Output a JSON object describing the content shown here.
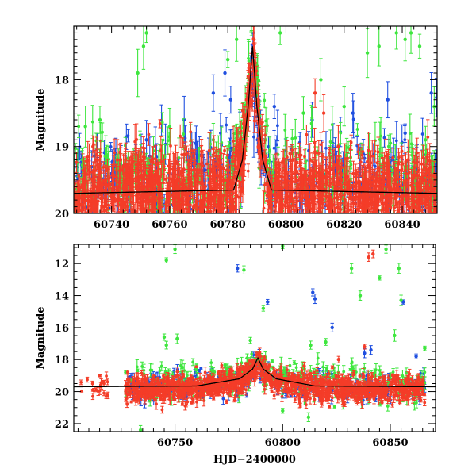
{
  "colors": {
    "blue": "#1f4fe0",
    "green": "#3ee63e",
    "red": "#f43c28",
    "model": "#000000"
  },
  "chart_data": [
    {
      "type": "scatter",
      "panel": "top",
      "ylabel": "Magnitude",
      "xlabel": "",
      "xlim": [
        60727,
        60852
      ],
      "ylim": [
        20.0,
        17.2
      ],
      "y_inverted": true,
      "x_ticks": [
        60740,
        60760,
        60780,
        60800,
        60820,
        60840
      ],
      "x_tick_labels": [
        "60740",
        "60760",
        "60780",
        "60800",
        "60820",
        "60840"
      ],
      "y_ticks": [
        18,
        19,
        20
      ],
      "y_tick_labels": [
        "18",
        "19",
        "20"
      ],
      "model_curve": {
        "baseline": 19.7,
        "peak_x": 60788.5,
        "peak_mag": 17.5,
        "points": [
          [
            60727,
            19.7
          ],
          [
            60782,
            19.65
          ],
          [
            60785,
            19.2
          ],
          [
            60787,
            18.4
          ],
          [
            60788.5,
            17.5
          ],
          [
            60790,
            18.4
          ],
          [
            60792,
            19.2
          ],
          [
            60795,
            19.65
          ],
          [
            60852,
            19.7
          ]
        ]
      },
      "series": [
        {
          "color": "blue",
          "baseline": 19.55,
          "scatter": 0.35,
          "x_range": [
            60727,
            60852
          ],
          "n_points": 420,
          "outliers": [
            [
              60752,
              18.9
            ],
            [
              60765,
              18.6
            ],
            [
              60775,
              18.2
            ],
            [
              60779,
              17.9
            ],
            [
              60781,
              18.3
            ],
            [
              60796,
              18.4
            ],
            [
              60809,
              18.6
            ],
            [
              60823,
              18.5
            ],
            [
              60835,
              18.3
            ],
            [
              60841,
              18.8
            ],
            [
              60850,
              18.2
            ]
          ]
        },
        {
          "color": "green",
          "baseline": 19.45,
          "scatter": 0.35,
          "x_range": [
            60727,
            60852
          ],
          "n_points": 380,
          "outliers": [
            [
              60731,
              18.7
            ],
            [
              60736,
              18.6
            ],
            [
              60749,
              17.9
            ],
            [
              60751,
              17.5
            ],
            [
              60752,
              17.3
            ],
            [
              60760,
              18.7
            ],
            [
              60775,
              18.9
            ],
            [
              60780,
              17.7
            ],
            [
              60783,
              17.4
            ],
            [
              60793,
              18.9
            ],
            [
              60798,
              17.3
            ],
            [
              60806,
              18.5
            ],
            [
              60812,
              18.0
            ],
            [
              60820,
              18.4
            ],
            [
              60828,
              17.6
            ],
            [
              60832,
              17.5
            ],
            [
              60838,
              17.3
            ],
            [
              60841,
              17.4
            ],
            [
              60843,
              17.3
            ],
            [
              60846,
              17.5
            ],
            [
              60848,
              18.9
            ],
            [
              60851,
              18.4
            ]
          ]
        },
        {
          "color": "red",
          "baseline": 19.7,
          "scatter": 0.3,
          "x_range": [
            60727,
            60852
          ],
          "n_points": 1600,
          "outliers": [
            [
              60742,
              19.2
            ],
            [
              60758,
              19.3
            ],
            [
              60789,
              17.4
            ],
            [
              60810,
              18.2
            ],
            [
              60813,
              18.5
            ],
            [
              60818,
              19.0
            ],
            [
              60842,
              19.2
            ]
          ]
        }
      ]
    },
    {
      "type": "scatter",
      "panel": "bottom",
      "ylabel": "Magnitude",
      "xlabel": "HJD−2400000",
      "xlim": [
        60703,
        60871
      ],
      "ylim": [
        22.5,
        10.8
      ],
      "y_inverted": true,
      "x_ticks": [
        60750,
        60800,
        60850
      ],
      "x_tick_labels": [
        "60750",
        "60800",
        "60850"
      ],
      "y_ticks": [
        12,
        14,
        16,
        18,
        20,
        22
      ],
      "y_tick_labels": [
        "12",
        "14",
        "16",
        "18",
        "20",
        "22"
      ],
      "model_curve": {
        "baseline": 19.7,
        "peak_x": 60788.5,
        "peak_mag": 17.9,
        "points": [
          [
            60703,
            19.7
          ],
          [
            60760,
            19.65
          ],
          [
            60780,
            19.2
          ],
          [
            60786,
            18.6
          ],
          [
            60788.5,
            17.9
          ],
          [
            60791,
            18.6
          ],
          [
            60797,
            19.2
          ],
          [
            60815,
            19.65
          ],
          [
            60871,
            19.7
          ]
        ]
      },
      "series": [
        {
          "color": "red",
          "baseline": 19.8,
          "scatter": 0.35,
          "x_range": [
            60706,
            60719
          ],
          "n_points": 22,
          "outliers": []
        },
        {
          "color": "blue",
          "baseline": 19.7,
          "scatter": 0.45,
          "x_range": [
            60727,
            60866
          ],
          "n_points": 320,
          "outliers": [
            [
              60779,
              12.3
            ],
            [
              60793,
              14.4
            ],
            [
              60814,
              13.8
            ],
            [
              60815,
              14.2
            ],
            [
              60823,
              16.0
            ],
            [
              60838,
              17.6
            ],
            [
              60841,
              17.4
            ],
            [
              60856,
              14.4
            ],
            [
              60862,
              17.8
            ]
          ]
        },
        {
          "color": "green",
          "baseline": 19.5,
          "scatter": 0.6,
          "x_range": [
            60727,
            60866
          ],
          "n_points": 300,
          "outliers": [
            [
              60746,
              11.8
            ],
            [
              60750,
              11.1
            ],
            [
              60745,
              16.6
            ],
            [
              60746,
              17.1
            ],
            [
              60751,
              16.7
            ],
            [
              60782,
              12.4
            ],
            [
              60791,
              14.8
            ],
            [
              60785,
              16.8
            ],
            [
              60800,
              10.9
            ],
            [
              60813,
              17.1
            ],
            [
              60820,
              16.9
            ],
            [
              60832,
              12.3
            ],
            [
              60836,
              14.0
            ],
            [
              60845,
              12.9
            ],
            [
              60848,
              11.1
            ],
            [
              60854,
              12.3
            ],
            [
              60855,
              14.3
            ],
            [
              60852,
              16.5
            ],
            [
              60866,
              17.3
            ],
            [
              60734,
              22.4
            ],
            [
              60800,
              21.2
            ],
            [
              60812,
              21.6
            ]
          ]
        },
        {
          "color": "red",
          "baseline": 19.85,
          "scatter": 0.4,
          "x_range": [
            60727,
            60866
          ],
          "n_points": 1300,
          "outliers": [
            [
              60840,
              11.6
            ],
            [
              60842,
              11.4
            ],
            [
              60838,
              17.2
            ],
            [
              60826,
              18.0
            ],
            [
              60810,
              18.4
            ]
          ]
        }
      ]
    }
  ]
}
